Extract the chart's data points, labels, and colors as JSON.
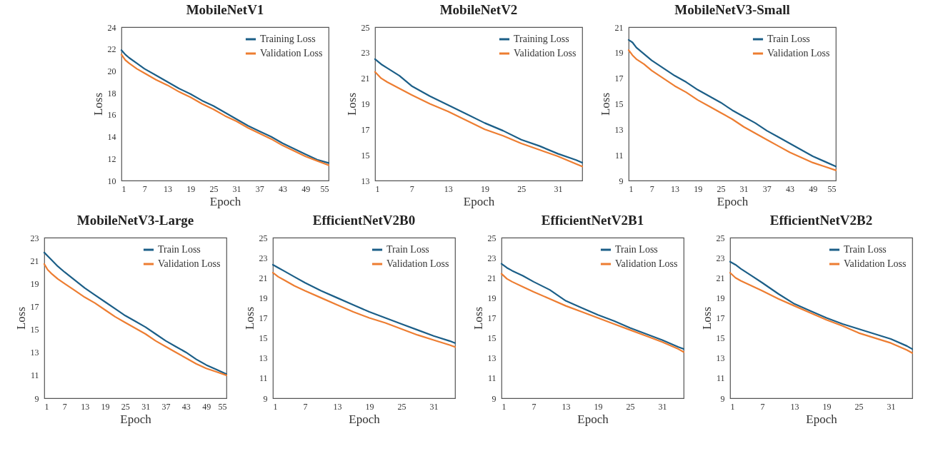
{
  "chart_data": [
    {
      "type": "line",
      "title": "MobileNetV1",
      "xlabel": "Epoch",
      "ylabel": "Loss",
      "legend": "top right",
      "grid": false,
      "xlim": [
        1,
        55
      ],
      "xticks": [
        1,
        7,
        13,
        19,
        25,
        31,
        37,
        43,
        49,
        55
      ],
      "ylim": [
        10,
        24
      ],
      "yticks": [
        10,
        12,
        14,
        16,
        18,
        20,
        22,
        24
      ],
      "x": [
        1,
        2,
        3,
        5,
        7,
        10,
        13,
        16,
        19,
        22,
        25,
        28,
        31,
        34,
        37,
        40,
        43,
        46,
        49,
        52,
        55
      ],
      "series": [
        {
          "name": "Training Loss",
          "color": "#1b5e87",
          "values": [
            21.9,
            21.5,
            21.2,
            20.7,
            20.2,
            19.6,
            19.0,
            18.4,
            17.9,
            17.3,
            16.8,
            16.2,
            15.6,
            15.0,
            14.5,
            14.0,
            13.4,
            12.9,
            12.4,
            11.9,
            11.6
          ]
        },
        {
          "name": "Validation Loss",
          "color": "#ed7d31",
          "values": [
            21.5,
            21.0,
            20.7,
            20.2,
            19.8,
            19.2,
            18.7,
            18.1,
            17.6,
            17.0,
            16.5,
            15.9,
            15.4,
            14.8,
            14.3,
            13.8,
            13.2,
            12.7,
            12.2,
            11.8,
            11.4
          ]
        }
      ]
    },
    {
      "type": "line",
      "title": "MobileNetV2",
      "xlabel": "Epoch",
      "ylabel": "Loss",
      "legend": "top right",
      "grid": false,
      "xlim": [
        1,
        35
      ],
      "xticks": [
        1,
        7,
        13,
        19,
        25,
        31
      ],
      "ylim": [
        13,
        25
      ],
      "yticks": [
        13,
        15,
        17,
        19,
        21,
        23,
        25
      ],
      "x": [
        1,
        2,
        3,
        5,
        7,
        10,
        13,
        16,
        19,
        22,
        25,
        28,
        31,
        34,
        35
      ],
      "series": [
        {
          "name": "Training Loss",
          "color": "#1b5e87",
          "values": [
            22.5,
            22.1,
            21.8,
            21.2,
            20.4,
            19.6,
            18.9,
            18.2,
            17.5,
            16.9,
            16.2,
            15.7,
            15.1,
            14.6,
            14.4
          ]
        },
        {
          "name": "Validation Loss",
          "color": "#ed7d31",
          "values": [
            21.5,
            21.0,
            20.7,
            20.2,
            19.7,
            19.0,
            18.4,
            17.7,
            17.0,
            16.5,
            15.9,
            15.4,
            14.9,
            14.3,
            14.1
          ]
        }
      ]
    },
    {
      "type": "line",
      "title": "MobileNetV3-Small",
      "xlabel": "Epoch",
      "ylabel": "Loss",
      "legend": "top right",
      "grid": false,
      "xlim": [
        1,
        55
      ],
      "xticks": [
        1,
        7,
        13,
        19,
        25,
        31,
        37,
        43,
        49,
        55
      ],
      "ylim": [
        9,
        21
      ],
      "yticks": [
        9,
        11,
        13,
        15,
        17,
        19,
        21
      ],
      "x": [
        1,
        2,
        3,
        5,
        7,
        10,
        13,
        16,
        19,
        22,
        25,
        28,
        31,
        34,
        37,
        40,
        43,
        46,
        49,
        52,
        55
      ],
      "series": [
        {
          "name": "Train Loss",
          "color": "#1b5e87",
          "values": [
            20.0,
            19.8,
            19.4,
            18.9,
            18.4,
            17.8,
            17.2,
            16.7,
            16.1,
            15.6,
            15.1,
            14.5,
            14.0,
            13.5,
            12.9,
            12.4,
            11.9,
            11.4,
            10.9,
            10.5,
            10.1
          ]
        },
        {
          "name": "Validation Loss",
          "color": "#ed7d31",
          "values": [
            19.2,
            18.8,
            18.5,
            18.1,
            17.6,
            17.0,
            16.4,
            15.9,
            15.3,
            14.8,
            14.3,
            13.8,
            13.2,
            12.7,
            12.2,
            11.7,
            11.2,
            10.8,
            10.4,
            10.1,
            9.8
          ]
        }
      ]
    },
    {
      "type": "line",
      "title": "MobileNetV3-Large",
      "xlabel": "Epoch",
      "ylabel": "Loss",
      "legend": "top right",
      "grid": false,
      "xlim": [
        1,
        55
      ],
      "xticks": [
        1,
        7,
        13,
        19,
        25,
        31,
        37,
        43,
        49,
        55
      ],
      "ylim": [
        9,
        23
      ],
      "yticks": [
        9,
        11,
        13,
        15,
        17,
        19,
        21,
        23
      ],
      "x": [
        1,
        2,
        3,
        5,
        7,
        10,
        13,
        16,
        19,
        22,
        25,
        28,
        31,
        34,
        37,
        40,
        43,
        46,
        49,
        52,
        55
      ],
      "series": [
        {
          "name": "Train Loss",
          "color": "#1b5e87",
          "values": [
            21.7,
            21.4,
            21.1,
            20.5,
            20.0,
            19.3,
            18.6,
            18.0,
            17.4,
            16.8,
            16.2,
            15.7,
            15.2,
            14.6,
            14.0,
            13.5,
            13.0,
            12.4,
            11.9,
            11.5,
            11.1
          ]
        },
        {
          "name": "Validation Loss",
          "color": "#ed7d31",
          "values": [
            20.7,
            20.2,
            19.9,
            19.4,
            19.0,
            18.4,
            17.8,
            17.3,
            16.7,
            16.1,
            15.6,
            15.1,
            14.6,
            14.0,
            13.5,
            13.0,
            12.5,
            12.0,
            11.6,
            11.3,
            11.0
          ]
        }
      ]
    },
    {
      "type": "line",
      "title": "EfficientNetV2B0",
      "xlabel": "Epoch",
      "ylabel": "Loss",
      "legend": "top right",
      "grid": false,
      "xlim": [
        1,
        35
      ],
      "xticks": [
        1,
        7,
        13,
        19,
        25,
        31
      ],
      "ylim": [
        9,
        25
      ],
      "yticks": [
        9,
        11,
        13,
        15,
        17,
        19,
        21,
        23,
        25
      ],
      "x": [
        1,
        2,
        3,
        5,
        7,
        10,
        13,
        16,
        19,
        22,
        25,
        28,
        31,
        34,
        35
      ],
      "series": [
        {
          "name": "Train Loss",
          "color": "#1b5e87",
          "values": [
            22.3,
            22.0,
            21.7,
            21.1,
            20.5,
            19.7,
            19.0,
            18.3,
            17.6,
            17.0,
            16.4,
            15.8,
            15.2,
            14.7,
            14.5
          ]
        },
        {
          "name": "Validation Loss",
          "color": "#ed7d31",
          "values": [
            21.5,
            21.1,
            20.8,
            20.2,
            19.7,
            19.0,
            18.3,
            17.6,
            17.0,
            16.5,
            15.9,
            15.3,
            14.8,
            14.3,
            14.1
          ]
        }
      ]
    },
    {
      "type": "line",
      "title": "EfficientNetV2B1",
      "xlabel": "Epoch",
      "ylabel": "Loss",
      "legend": "top right",
      "grid": false,
      "xlim": [
        1,
        35
      ],
      "xticks": [
        1,
        7,
        13,
        19,
        25,
        31
      ],
      "ylim": [
        9,
        25
      ],
      "yticks": [
        9,
        11,
        13,
        15,
        17,
        19,
        21,
        23,
        25
      ],
      "x": [
        1,
        2,
        3,
        5,
        7,
        10,
        13,
        16,
        19,
        22,
        25,
        28,
        31,
        34,
        35
      ],
      "series": [
        {
          "name": "Train Loss",
          "color": "#1b5e87",
          "values": [
            22.4,
            22.0,
            21.7,
            21.2,
            20.6,
            19.8,
            18.7,
            18.0,
            17.3,
            16.7,
            16.0,
            15.4,
            14.8,
            14.1,
            13.9
          ]
        },
        {
          "name": "Validation Loss",
          "color": "#ed7d31",
          "values": [
            21.4,
            20.9,
            20.6,
            20.1,
            19.6,
            18.9,
            18.2,
            17.6,
            17.0,
            16.4,
            15.8,
            15.2,
            14.6,
            13.9,
            13.6
          ]
        }
      ]
    },
    {
      "type": "line",
      "title": "EfficientNetV2B2",
      "xlabel": "Epoch",
      "ylabel": "Loss",
      "legend": "top right",
      "grid": false,
      "xlim": [
        1,
        35
      ],
      "xticks": [
        1,
        7,
        13,
        19,
        25,
        31
      ],
      "ylim": [
        9,
        25
      ],
      "yticks": [
        9,
        11,
        13,
        15,
        17,
        19,
        21,
        23,
        25
      ],
      "x": [
        1,
        2,
        3,
        5,
        7,
        10,
        13,
        16,
        19,
        22,
        25,
        28,
        31,
        34,
        35
      ],
      "series": [
        {
          "name": "Train Loss",
          "color": "#1b5e87",
          "values": [
            22.6,
            22.3,
            21.9,
            21.2,
            20.5,
            19.4,
            18.4,
            17.7,
            17.0,
            16.4,
            15.9,
            15.4,
            14.9,
            14.2,
            13.9
          ]
        },
        {
          "name": "Validation Loss",
          "color": "#ed7d31",
          "values": [
            21.5,
            21.0,
            20.7,
            20.2,
            19.7,
            18.9,
            18.2,
            17.5,
            16.8,
            16.2,
            15.5,
            15.0,
            14.5,
            13.8,
            13.5
          ]
        }
      ]
    }
  ]
}
